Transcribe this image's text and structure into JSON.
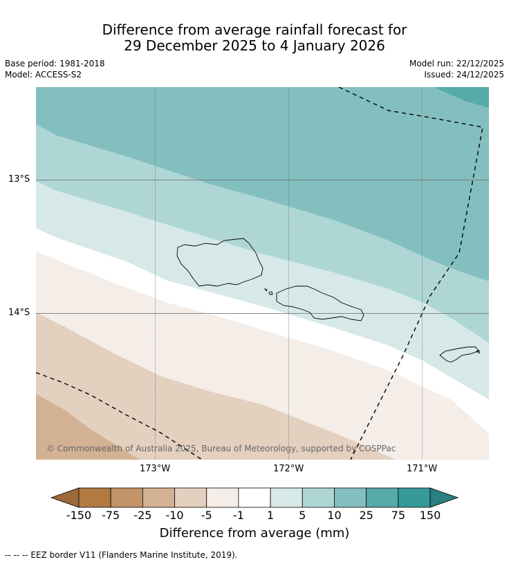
{
  "header": {
    "title_line1": "Difference from average rainfall forecast for",
    "title_line2": "29 December 2025 to 4 January 2026",
    "base_period": "Base period: 1981-2018",
    "model": "Model: ACCESS-S2",
    "model_run": "Model run: 22/12/2025",
    "issued": "Issued: 24/12/2025"
  },
  "map": {
    "lat_labels": [
      "13°S",
      "14°S"
    ],
    "lon_labels": [
      "173°W",
      "172°W",
      "171°W"
    ],
    "copyright": "© Commonwealth of Australia 2025, Bureau of Meteorology, supported by COSPPac"
  },
  "legend": {
    "ticks": [
      "-150",
      "-75",
      "-25",
      "-10",
      "-5",
      "-1",
      "1",
      "5",
      "10",
      "25",
      "75",
      "150"
    ],
    "colors": [
      "#9c6a3a",
      "#b07a41",
      "#c29467",
      "#d3b193",
      "#e3d0bf",
      "#f4ede8",
      "#ffffff",
      "#d6e9e8",
      "#aed6d5",
      "#84bfbf",
      "#57aaaa",
      "#36999a",
      "#2a7f7f"
    ],
    "label": "Difference from average (mm)"
  },
  "footer": {
    "eez_note": "--  --  -- EEZ border V11 (Flanders Marine Institute, 2019)."
  }
}
